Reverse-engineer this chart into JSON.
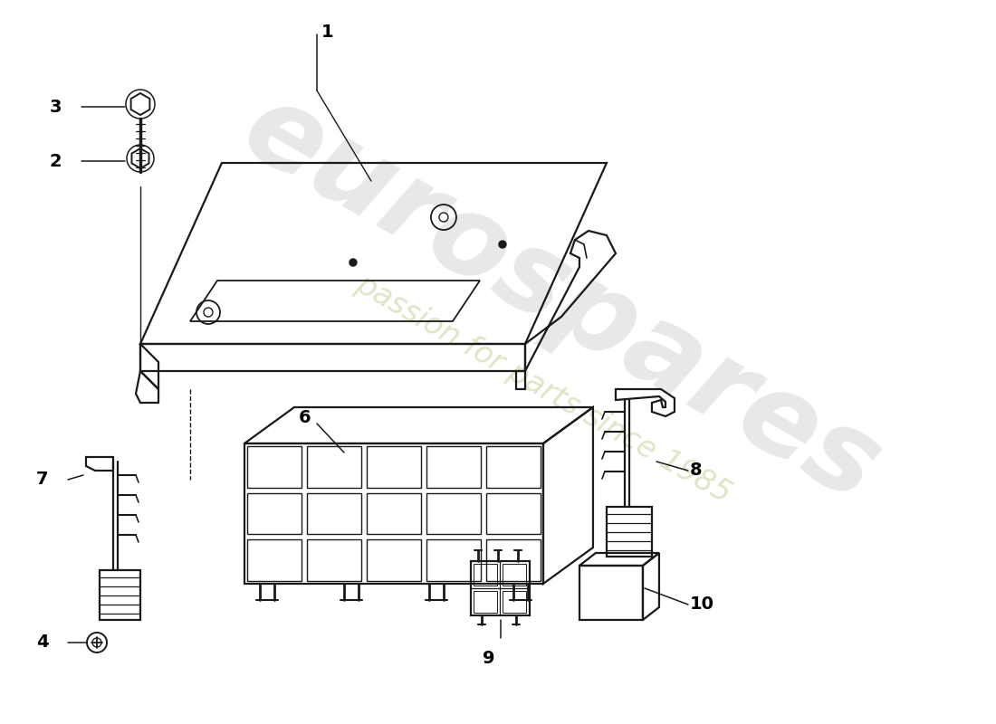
{
  "bg_color": "#ffffff",
  "line_color": "#1a1a1a",
  "label_color": "#000000",
  "watermark_color": "#cccccc",
  "watermark_color2": "#d4d4aa"
}
